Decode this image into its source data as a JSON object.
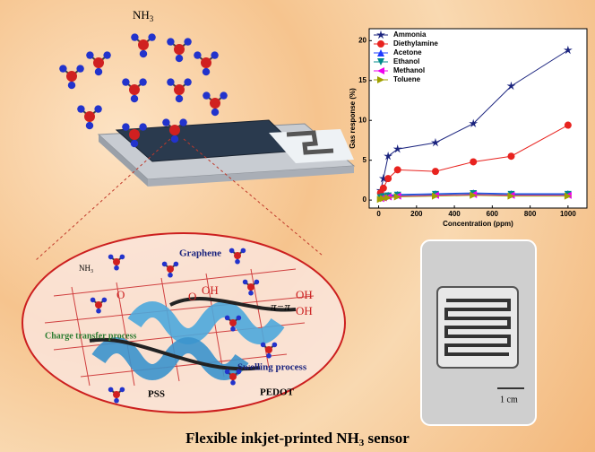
{
  "chart_data": {
    "type": "line",
    "x_label": "Concentration (ppm)",
    "y_label": "Gas response (%)",
    "x": [
      10,
      25,
      50,
      100,
      300,
      500,
      700,
      1000
    ],
    "xlim": [
      -50,
      1100
    ],
    "xticks": [
      0,
      200,
      400,
      600,
      800,
      1000
    ],
    "ylim": [
      -1,
      21.5
    ],
    "yticks": [
      0,
      5,
      10,
      15,
      20
    ],
    "legend": "upper-left",
    "series": [
      {
        "name": "Ammonia",
        "color": "#1a237e",
        "marker": "star",
        "values": [
          1.2,
          2.7,
          5.5,
          6.4,
          7.2,
          9.6,
          14.3,
          18.8
        ]
      },
      {
        "name": "Diethylamine",
        "color": "#e8231f",
        "marker": "circle",
        "values": [
          0.9,
          1.5,
          2.7,
          3.8,
          3.6,
          4.8,
          5.5,
          9.4
        ]
      },
      {
        "name": "Acetone",
        "color": "#1e3cff",
        "marker": "triangle-up",
        "values": [
          0.4,
          0.5,
          0.6,
          0.7,
          0.8,
          0.9,
          0.8,
          0.8
        ]
      },
      {
        "name": "Ethanol",
        "color": "#008b8b",
        "marker": "triangle-down",
        "values": [
          0.3,
          0.4,
          0.5,
          0.6,
          0.7,
          0.8,
          0.7,
          0.7
        ]
      },
      {
        "name": "Methanol",
        "color": "#ee00ee",
        "marker": "triangle-left",
        "values": [
          0.2,
          0.3,
          0.4,
          0.5,
          0.6,
          0.7,
          0.6,
          0.6
        ]
      },
      {
        "name": "Toluene",
        "color": "#a0a000",
        "marker": "triangle-right",
        "values": [
          0.1,
          0.2,
          0.3,
          0.4,
          0.5,
          0.6,
          0.5,
          0.5
        ]
      }
    ]
  },
  "illustration": {
    "gas": {
      "main": "NH",
      "sub": "3"
    },
    "gas_small": {
      "main": "NH",
      "sub": "3"
    },
    "graphene": "Graphene",
    "groups": [
      "OH",
      "OH",
      "OH",
      "O",
      "O"
    ],
    "pi": "π−π",
    "charge": "Charge transfer process",
    "swelling": "Swelling process",
    "pss": "PSS",
    "pedot": "PEDOT",
    "scale": "1 cm"
  },
  "caption": {
    "before": "Flexible inkjet-printed NH",
    "sub": "3",
    "after": " sensor"
  }
}
